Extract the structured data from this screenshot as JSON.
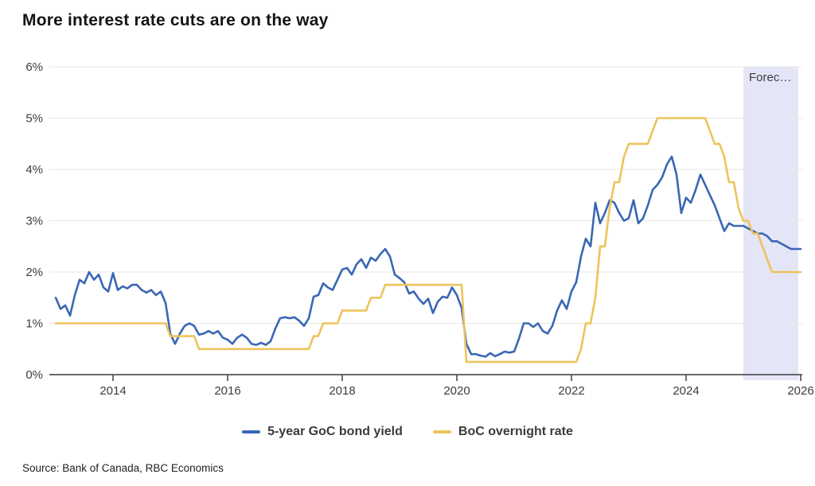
{
  "page": {
    "title": "More interest rate cuts are on the way",
    "source": "Source: Bank of Canada, RBC Economics"
  },
  "chart_data": {
    "type": "line",
    "title": "More interest rate cuts are on the way",
    "xlabel": "",
    "ylabel": "",
    "x_unit": "monthly, Jan 2013 - Jan 2026",
    "x_ticks": [
      "2014",
      "2016",
      "2018",
      "2020",
      "2022",
      "2024",
      "2026"
    ],
    "x_tick_years": [
      2014,
      2016,
      2018,
      2020,
      2022,
      2024,
      2026
    ],
    "x_range_years": [
      2013,
      2026
    ],
    "y_ticks": [
      "0%",
      "1%",
      "2%",
      "3%",
      "4%",
      "5%",
      "6%"
    ],
    "ylim": [
      0,
      6
    ],
    "grid": "horizontal",
    "legend_position": "bottom",
    "forecast_label": "Forec…",
    "forecast_region": {
      "start_year": 2025,
      "end_year": 2026
    },
    "colors": {
      "bond_yield": "#3a67b4",
      "overnight_rate": "#edc45c",
      "forecast_band": "#e5e5f8",
      "gridline": "#e7e7e7",
      "axis": "#55565a",
      "tick_text": "#3d3d3d",
      "forecast_text": "#3d3d3d"
    },
    "series": [
      {
        "name": "5-year GoC bond yield",
        "color": "#3a67b4",
        "values": [
          1.5,
          1.28,
          1.35,
          1.15,
          1.55,
          1.85,
          1.78,
          2.0,
          1.85,
          1.95,
          1.7,
          1.62,
          1.98,
          1.65,
          1.72,
          1.68,
          1.75,
          1.75,
          1.65,
          1.6,
          1.65,
          1.55,
          1.62,
          1.4,
          0.8,
          0.6,
          0.8,
          0.95,
          1.0,
          0.95,
          0.78,
          0.8,
          0.85,
          0.8,
          0.85,
          0.72,
          0.68,
          0.6,
          0.72,
          0.78,
          0.72,
          0.6,
          0.58,
          0.62,
          0.58,
          0.65,
          0.9,
          1.1,
          1.12,
          1.1,
          1.12,
          1.05,
          0.95,
          1.1,
          1.52,
          1.55,
          1.78,
          1.7,
          1.65,
          1.85,
          2.05,
          2.08,
          1.95,
          2.15,
          2.25,
          2.08,
          2.28,
          2.22,
          2.35,
          2.45,
          2.3,
          1.95,
          1.88,
          1.8,
          1.58,
          1.62,
          1.48,
          1.38,
          1.48,
          1.2,
          1.42,
          1.52,
          1.5,
          1.7,
          1.55,
          1.3,
          0.6,
          0.4,
          0.4,
          0.37,
          0.35,
          0.42,
          0.36,
          0.4,
          0.45,
          0.43,
          0.45,
          0.7,
          1.0,
          1.0,
          0.93,
          1.0,
          0.85,
          0.8,
          0.95,
          1.25,
          1.45,
          1.28,
          1.62,
          1.8,
          2.3,
          2.65,
          2.5,
          3.35,
          2.95,
          3.15,
          3.4,
          3.35,
          3.15,
          3.0,
          3.05,
          3.4,
          2.95,
          3.05,
          3.3,
          3.6,
          3.7,
          3.85,
          4.1,
          4.25,
          3.9,
          3.15,
          3.45,
          3.35,
          3.6,
          3.9,
          3.7,
          3.5,
          3.3,
          3.05,
          2.8,
          2.95,
          2.9,
          2.9,
          2.9,
          2.85,
          2.8,
          2.75,
          2.75,
          2.7,
          2.6,
          2.6,
          2.55,
          2.5,
          2.45,
          2.45,
          2.45
        ]
      },
      {
        "name": "BoC overnight rate",
        "color": "#edc45c",
        "values": [
          1.0,
          1.0,
          1.0,
          1.0,
          1.0,
          1.0,
          1.0,
          1.0,
          1.0,
          1.0,
          1.0,
          1.0,
          1.0,
          1.0,
          1.0,
          1.0,
          1.0,
          1.0,
          1.0,
          1.0,
          1.0,
          1.0,
          1.0,
          1.0,
          0.75,
          0.75,
          0.75,
          0.75,
          0.75,
          0.75,
          0.5,
          0.5,
          0.5,
          0.5,
          0.5,
          0.5,
          0.5,
          0.5,
          0.5,
          0.5,
          0.5,
          0.5,
          0.5,
          0.5,
          0.5,
          0.5,
          0.5,
          0.5,
          0.5,
          0.5,
          0.5,
          0.5,
          0.5,
          0.5,
          0.75,
          0.75,
          1.0,
          1.0,
          1.0,
          1.0,
          1.25,
          1.25,
          1.25,
          1.25,
          1.25,
          1.25,
          1.5,
          1.5,
          1.5,
          1.75,
          1.75,
          1.75,
          1.75,
          1.75,
          1.75,
          1.75,
          1.75,
          1.75,
          1.75,
          1.75,
          1.75,
          1.75,
          1.75,
          1.75,
          1.75,
          1.75,
          0.25,
          0.25,
          0.25,
          0.25,
          0.25,
          0.25,
          0.25,
          0.25,
          0.25,
          0.25,
          0.25,
          0.25,
          0.25,
          0.25,
          0.25,
          0.25,
          0.25,
          0.25,
          0.25,
          0.25,
          0.25,
          0.25,
          0.25,
          0.25,
          0.5,
          1.0,
          1.0,
          1.5,
          2.5,
          2.5,
          3.25,
          3.75,
          3.75,
          4.25,
          4.5,
          4.5,
          4.5,
          4.5,
          4.5,
          4.75,
          5.0,
          5.0,
          5.0,
          5.0,
          5.0,
          5.0,
          5.0,
          5.0,
          5.0,
          5.0,
          5.0,
          4.75,
          4.5,
          4.5,
          4.25,
          3.75,
          3.75,
          3.25,
          3.0,
          3.0,
          2.75,
          2.75,
          2.5,
          2.25,
          2.0,
          2.0,
          2.0,
          2.0,
          2.0,
          2.0,
          2.0
        ]
      }
    ]
  }
}
